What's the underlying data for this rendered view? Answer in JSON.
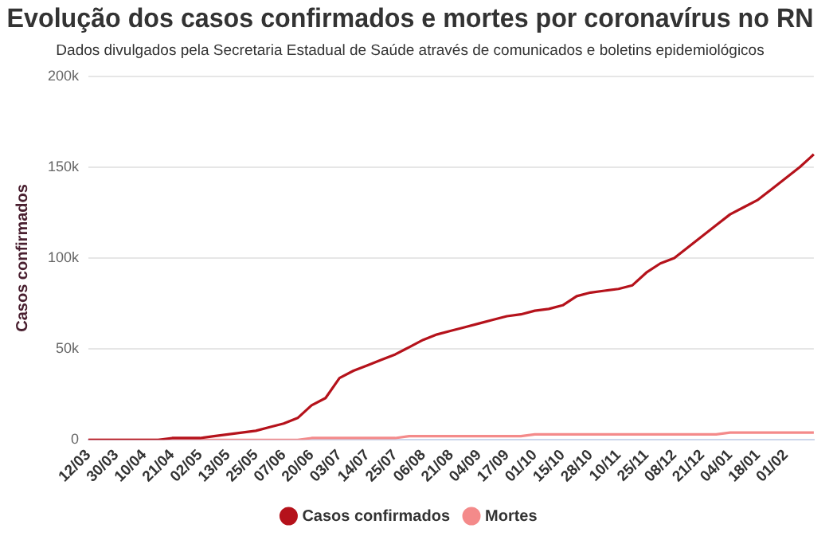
{
  "chart_data": {
    "type": "line",
    "title": "Evolução dos casos confirmados e mortes por coronavírus no RN",
    "subtitle": "Dados divulgados pela Secretaria Estadual de Saúde através de comunicados e boletins epidemiológicos",
    "ylabel": "Casos confirmados",
    "categories": [
      "12/03",
      null,
      "30/03",
      null,
      "10/04",
      null,
      "21/04",
      null,
      "02/05",
      null,
      "13/05",
      null,
      "25/05",
      null,
      "07/06",
      null,
      "20/06",
      null,
      "03/07",
      null,
      "14/07",
      null,
      "25/07",
      null,
      "06/08",
      null,
      "21/08",
      null,
      "04/09",
      null,
      "17/09",
      null,
      "01/10",
      null,
      "15/10",
      null,
      "28/10",
      null,
      "10/11",
      null,
      "25/11",
      null,
      "08/12",
      null,
      "21/12",
      null,
      "04/01",
      null,
      "18/01",
      null,
      "01/02",
      null,
      null
    ],
    "series": [
      {
        "name": "Casos confirmados",
        "color": "#b5121b",
        "values": [
          0,
          0,
          0,
          0,
          0,
          0,
          1000,
          1000,
          1000,
          2000,
          3000,
          4000,
          5000,
          7000,
          9000,
          12000,
          19000,
          23000,
          34000,
          38000,
          41000,
          44000,
          47000,
          51000,
          55000,
          58000,
          60000,
          62000,
          64000,
          66000,
          68000,
          69000,
          71000,
          72000,
          74000,
          79000,
          81000,
          82000,
          83000,
          85000,
          92000,
          97000,
          100000,
          106000,
          112000,
          118000,
          124000,
          128000,
          132000,
          138000,
          144000,
          150000,
          157000
        ]
      },
      {
        "name": "Mortes",
        "color": "#f48a8a",
        "values": [
          0,
          0,
          0,
          0,
          0,
          0,
          0,
          0,
          0,
          0,
          0,
          0,
          0,
          0,
          0,
          0,
          1000,
          1000,
          1000,
          1000,
          1000,
          1000,
          1000,
          2000,
          2000,
          2000,
          2000,
          2000,
          2000,
          2000,
          2000,
          2000,
          3000,
          3000,
          3000,
          3000,
          3000,
          3000,
          3000,
          3000,
          3000,
          3000,
          3000,
          3000,
          3000,
          3000,
          4000,
          4000,
          4000,
          4000,
          4000,
          4000,
          4000
        ]
      }
    ],
    "ylim": [
      0,
      200000
    ],
    "yticks": [
      0,
      {
        "value": 50000,
        "label": "50k"
      },
      {
        "value": 100000,
        "label": "100k"
      },
      {
        "value": 150000,
        "label": "150k"
      },
      {
        "value": 200000,
        "label": "200k"
      }
    ],
    "grid": "y",
    "legend": "bottom",
    "marker": "none",
    "line_style": "solid"
  }
}
